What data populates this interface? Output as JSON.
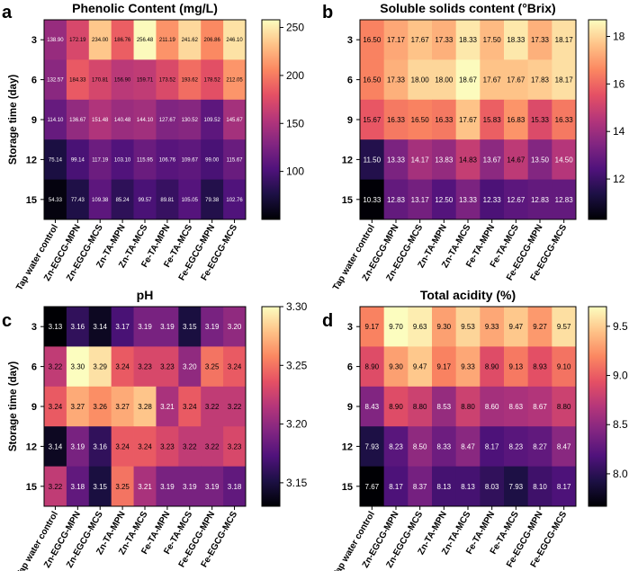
{
  "chart_data": [
    {
      "type": "heatmap",
      "panel_letter": "a",
      "title": "Phenolic Content (mg/L)",
      "ylabel": "Storage time (day)",
      "xlabel": "",
      "rows": [
        "3",
        "6",
        "9",
        "12",
        "15"
      ],
      "columns": [
        "Tap water control",
        "Zn-EGCG-MPN",
        "Zn-EGCG-MCS",
        "Zn-TA-MPN",
        "Zn-TA-MCS",
        "Fe-TA-MPN",
        "Fe-TA-MCS",
        "Fe-EGCG-MPN",
        "Fe-EGCG-MCS"
      ],
      "values": [
        [
          "138.90",
          "172.19",
          "234.00",
          "186.76",
          "256.48",
          "211.19",
          "241.62",
          "206.86",
          "246.10"
        ],
        [
          "132.57",
          "184.33",
          "170.81",
          "156.90",
          "159.71",
          "173.52",
          "193.62",
          "178.52",
          "212.05"
        ],
        [
          "114.10",
          "136.67",
          "151.48",
          "140.48",
          "144.10",
          "127.67",
          "130.52",
          "109.52",
          "145.67"
        ],
        [
          "75.14",
          "99.14",
          "117.19",
          "103.10",
          "115.95",
          "106.76",
          "109.67",
          "99.00",
          "115.67"
        ],
        [
          "54.33",
          "77.43",
          "109.38",
          "85.24",
          "99.57",
          "89.81",
          "105.05",
          "79.38",
          "102.76"
        ]
      ],
      "colorbar_ticks": [
        "250",
        "200",
        "150",
        "100"
      ],
      "colorbar_range": [
        50,
        258
      ]
    },
    {
      "type": "heatmap",
      "panel_letter": "b",
      "title": "Soluble solids content (°Brix)",
      "ylabel": "",
      "xlabel": "",
      "rows": [
        "3",
        "6",
        "9",
        "12",
        "15"
      ],
      "columns": [
        "Tap water control",
        "Zn-EGCG-MPN",
        "Zn-EGCG-MCS",
        "Zn-TA-MPN",
        "Zn-TA-MCS",
        "Fe-TA-MPN",
        "Fe-TA-MCS",
        "Fe-EGCG-MPN",
        "Fe-EGCG-MCS"
      ],
      "values": [
        [
          "16.50",
          "17.17",
          "17.67",
          "17.33",
          "18.33",
          "17.50",
          "18.33",
          "17.33",
          "18.17"
        ],
        [
          "16.50",
          "17.33",
          "18.00",
          "18.00",
          "18.67",
          "17.67",
          "17.67",
          "17.83",
          "18.17"
        ],
        [
          "15.67",
          "16.33",
          "16.50",
          "16.33",
          "17.67",
          "15.83",
          "16.83",
          "15.33",
          "16.33"
        ],
        [
          "11.50",
          "13.33",
          "14.17",
          "13.83",
          "14.83",
          "13.67",
          "14.67",
          "13.50",
          "14.50"
        ],
        [
          "10.33",
          "12.83",
          "13.17",
          "12.50",
          "13.33",
          "12.33",
          "12.67",
          "12.83",
          "12.83"
        ]
      ],
      "colorbar_ticks": [
        "18",
        "16",
        "14",
        "12"
      ],
      "colorbar_range": [
        10.3,
        18.7
      ]
    },
    {
      "type": "heatmap",
      "panel_letter": "c",
      "title": "pH",
      "ylabel": "Storage time (day)",
      "xlabel": "",
      "rows": [
        "3",
        "6",
        "9",
        "12",
        "15"
      ],
      "columns": [
        "Tap water control",
        "Zn-EGCG-MPN",
        "Zn-EGCG-MCS",
        "Zn-TA-MPN",
        "Zn-TA-MCS",
        "Fe-TA-MPN",
        "Fe-TA-MCS",
        "Fe-EGCG-MPN",
        "Fe-EGCG-MCS"
      ],
      "values": [
        [
          "3.13",
          "3.16",
          "3.14",
          "3.17",
          "3.19",
          "3.19",
          "3.15",
          "3.19",
          "3.20"
        ],
        [
          "3.22",
          "3.30",
          "3.29",
          "3.24",
          "3.23",
          "3.23",
          "3.20",
          "3.25",
          "3.24"
        ],
        [
          "3.24",
          "3.27",
          "3.26",
          "3.27",
          "3.28",
          "3.21",
          "3.24",
          "3.22",
          "3.22"
        ],
        [
          "3.14",
          "3.19",
          "3.16",
          "3.24",
          "3.24",
          "3.23",
          "3.22",
          "3.22",
          "3.23"
        ],
        [
          "3.22",
          "3.18",
          "3.15",
          "3.25",
          "3.21",
          "3.19",
          "3.19",
          "3.19",
          "3.18"
        ]
      ],
      "colorbar_ticks": [
        "3.30",
        "3.25",
        "3.20",
        "3.15"
      ],
      "colorbar_range": [
        3.13,
        3.3
      ]
    },
    {
      "type": "heatmap",
      "panel_letter": "d",
      "title": "Total acidity (%)",
      "ylabel": "",
      "xlabel": "",
      "rows": [
        "3",
        "6",
        "9",
        "12",
        "15"
      ],
      "columns": [
        "Tap water control",
        "Zn-EGCG-MPN",
        "Zn-EGCG-MCS",
        "Zn-TA-MPN",
        "Zn-TA-MCS",
        "Fe-TA-MPN",
        "Fe-TA-MCS",
        "Fe-EGCG-MPN",
        "Fe-EGCG-MCS"
      ],
      "values": [
        [
          "9.17",
          "9.70",
          "9.63",
          "9.30",
          "9.53",
          "9.33",
          "9.47",
          "9.27",
          "9.57"
        ],
        [
          "8.90",
          "9.30",
          "9.47",
          "9.17",
          "9.33",
          "8.90",
          "9.13",
          "8.93",
          "9.10"
        ],
        [
          "8.43",
          "8.90",
          "8.80",
          "8.53",
          "8.80",
          "8.60",
          "8.63",
          "8.67",
          "8.80"
        ],
        [
          "7.93",
          "8.23",
          "8.50",
          "8.33",
          "8.47",
          "8.17",
          "8.23",
          "8.27",
          "8.47"
        ],
        [
          "7.67",
          "8.17",
          "8.37",
          "8.13",
          "8.13",
          "8.03",
          "7.93",
          "8.10",
          "8.17"
        ]
      ],
      "colorbar_ticks": [
        "9.5",
        "9.0",
        "8.5",
        "8.0"
      ],
      "colorbar_range": [
        7.67,
        9.7
      ]
    }
  ]
}
